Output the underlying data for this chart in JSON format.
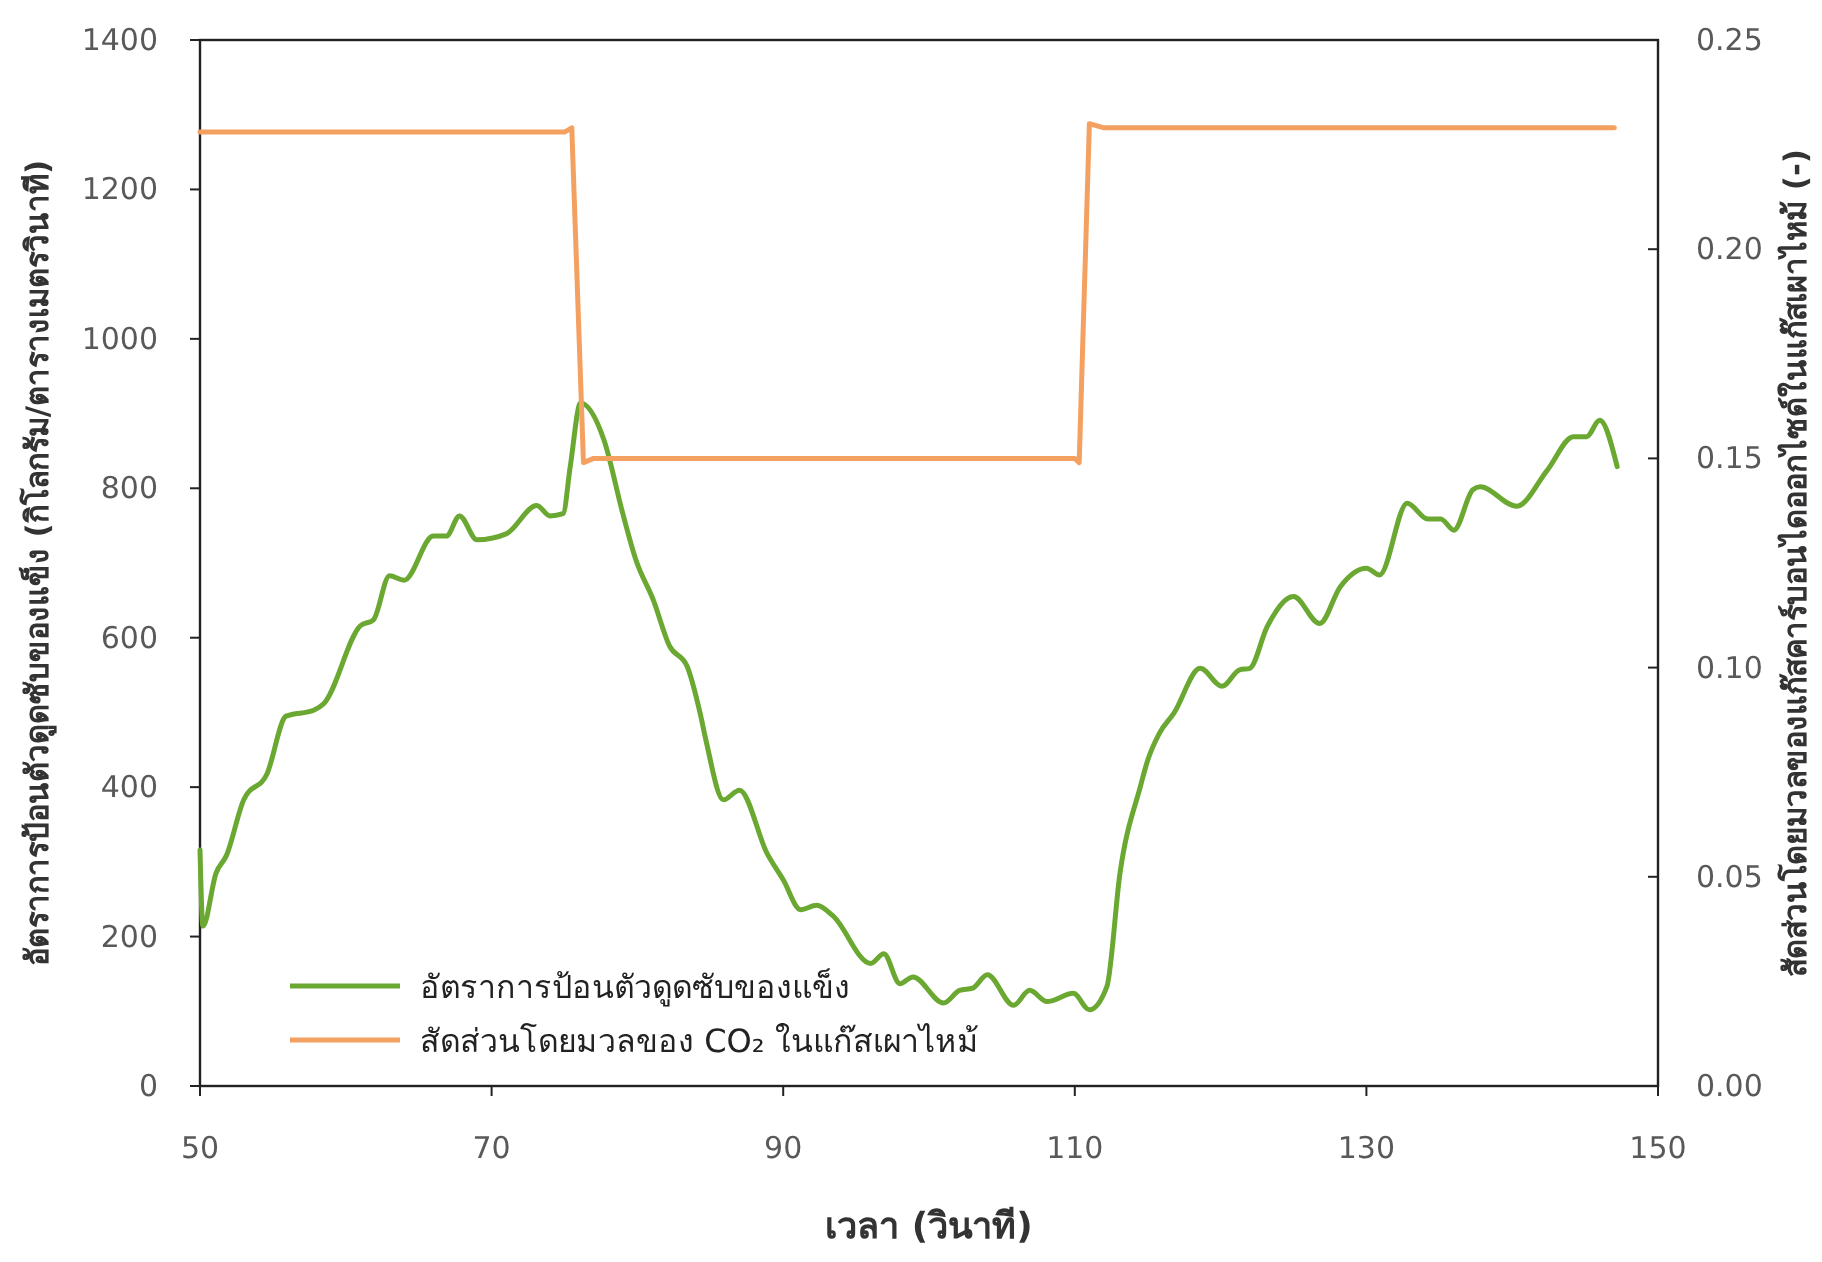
{
  "chart_data": {
    "type": "line",
    "xlabel": "เวลา (วินาที)",
    "ylabel": "อัตราการป้อนตัวดูดซับของแข็ง (กิโลกรัม/ตารางเมตรวินาที)",
    "y2label": "สัดส่วนโดยมวลของแก๊สคาร์บอนไดออกไซด์ในแก๊สเผาไหม้ (-)",
    "xlim": [
      50,
      150
    ],
    "xticks": [
      50,
      70,
      90,
      110,
      130,
      150
    ],
    "ylim": [
      0,
      1400
    ],
    "yticks": [
      0,
      200,
      400,
      600,
      800,
      1000,
      1200,
      1400
    ],
    "y2lim": [
      0,
      0.25
    ],
    "y2ticks": [
      {
        "value": 0,
        "label": "0.00"
      },
      {
        "value": 0.05,
        "label": "0.05"
      },
      {
        "value": 0.1,
        "label": "0.10"
      },
      {
        "value": 0.15,
        "label": "0.15"
      },
      {
        "value": 0.2,
        "label": "0.20"
      },
      {
        "value": 0.25,
        "label": "0.25"
      }
    ],
    "grid": false,
    "legend": "bottom left",
    "line_style": "solid",
    "series": [
      {
        "name": "อัตราการป้อนตัวดูดซับของแข็ง",
        "color": "#6aa832",
        "x": [
          50,
          50.2,
          51.1,
          51.8,
          53.0,
          54.6,
          55.9,
          57.8,
          58.5,
          61.0,
          61.9,
          63.0,
          64.0,
          66.0,
          66.9,
          67.8,
          69.0,
          71.0,
          73.1,
          74.0,
          74.9,
          75.4,
          76.1,
          77.7,
          79.0,
          79.9,
          81.1,
          82.2,
          83.4,
          84.3,
          84.7,
          85.9,
          87.0,
          88.9,
          90.0,
          91.2,
          92.3,
          93.4,
          96.0,
          96.9,
          98.0,
          98.9,
          101.0,
          102.1,
          103.0,
          104.0,
          105.8,
          106.9,
          108.1,
          109.9,
          111.0,
          112.2,
          113.1,
          114.5,
          115.0,
          115.8,
          116.8,
          118.6,
          120.1,
          121.3,
          122.0,
          123.2,
          125.0,
          126.8,
          128.2,
          130.0,
          130.9,
          132.8,
          134.2,
          135.1,
          136.0,
          137.3,
          137.8,
          140.3,
          142.4,
          144.2,
          145.1,
          146.0,
          147.2
        ],
        "values": [
          316,
          214,
          285,
          308,
          383,
          418,
          495,
          503,
          512,
          616,
          624,
          683,
          677,
          736,
          736,
          763,
          731,
          739,
          777,
          763,
          766,
          830,
          914,
          865,
          766,
          704,
          650,
          589,
          562,
          499,
          463,
          383,
          396,
          311,
          276,
          236,
          242,
          228,
          164,
          177,
          137,
          146,
          111,
          128,
          131,
          149,
          108,
          128,
          113,
          124,
          102,
          133,
          285,
          401,
          436,
          472,
          499,
          559,
          535,
          557,
          559,
          615,
          655,
          619,
          668,
          693,
          684,
          780,
          759,
          759,
          744,
          798,
          802,
          776,
          824,
          869,
          869,
          891,
          829
        ]
      },
      {
        "name": "สัดส่วนโดยมวลของ CO₂ ในแก๊สเผาไหม้",
        "color": "#f4a060",
        "axis": "y2",
        "x": [
          50,
          75,
          75.5,
          76.3,
          77,
          110,
          110.3,
          111,
          112,
          147
        ],
        "values": [
          0.228,
          0.228,
          0.229,
          0.149,
          0.15,
          0.15,
          0.149,
          0.23,
          0.229,
          0.229
        ]
      }
    ]
  }
}
